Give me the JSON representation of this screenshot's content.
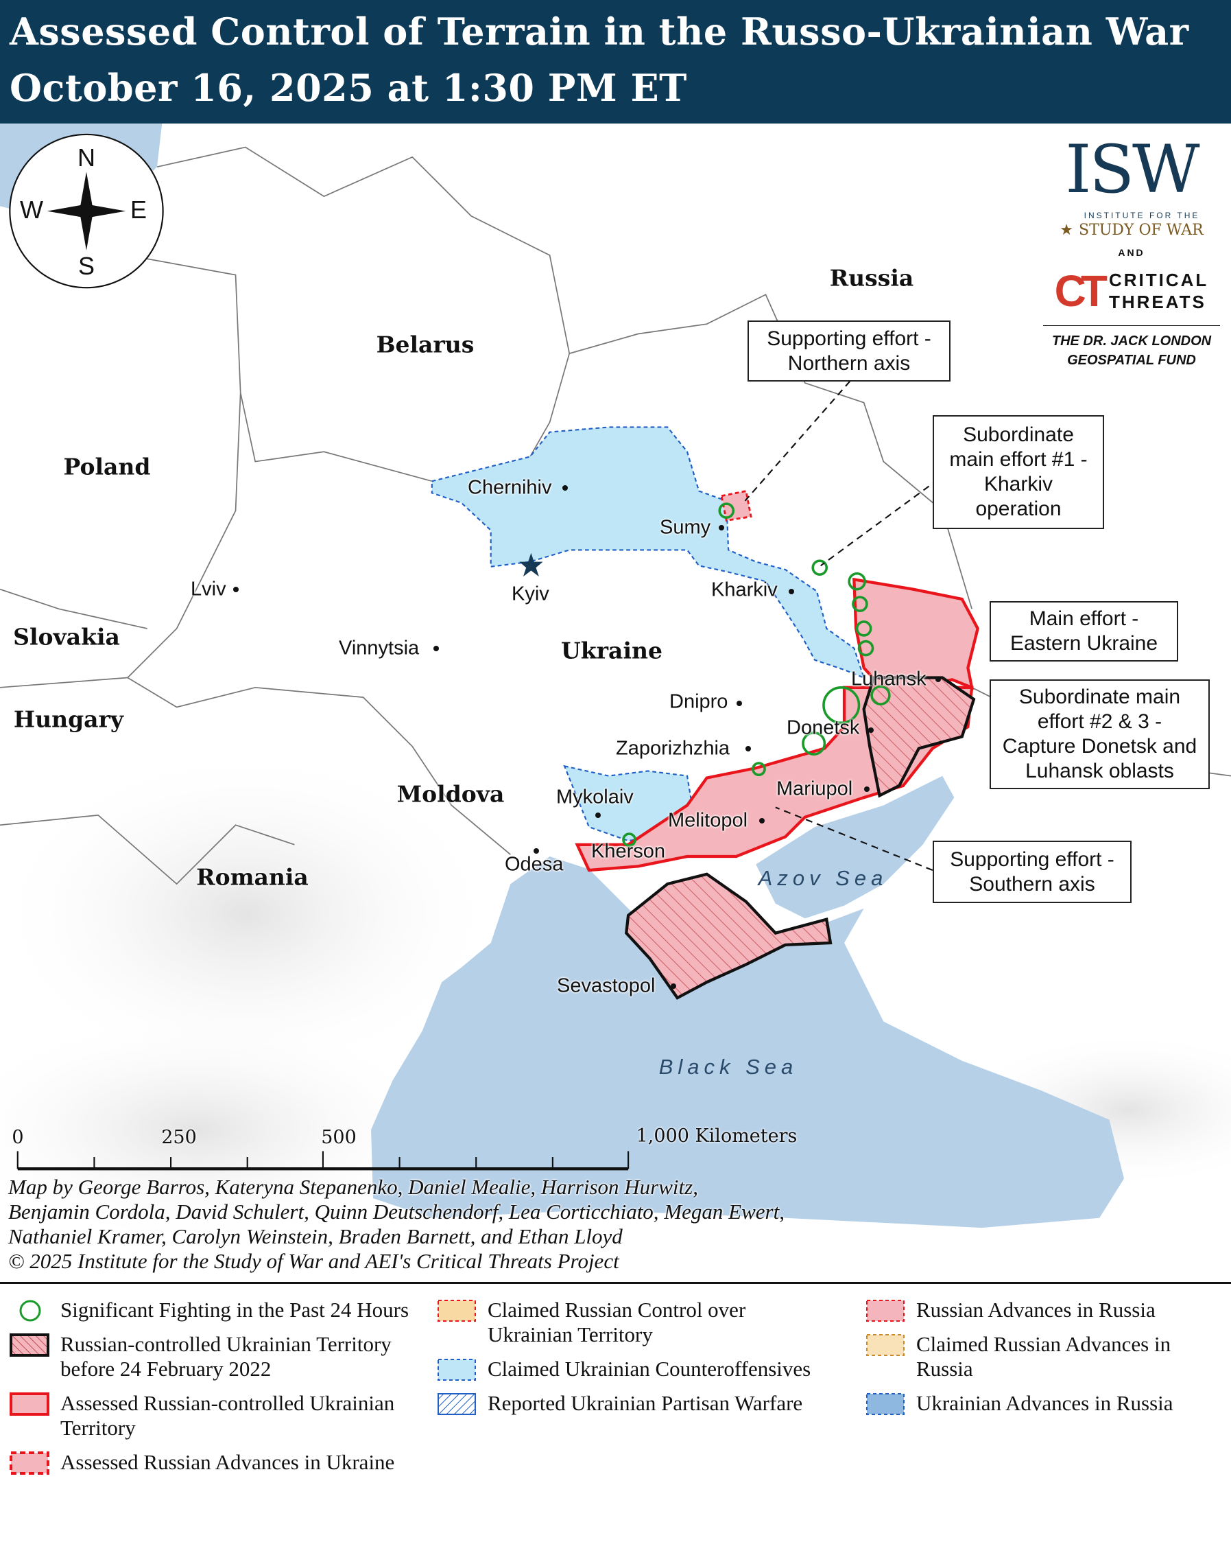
{
  "header": {
    "title_line1": "Assessed Control of Terrain in the Russo-Ukrainian War",
    "title_line2": "October 16, 2025 at 1:30 PM ET"
  },
  "compass": {
    "n": "N",
    "s": "S",
    "e": "E",
    "w": "W"
  },
  "logo": {
    "isw": "ISW",
    "isw_sub1": "INSTITUTE FOR THE",
    "isw_sub2": "STUDY OF WAR",
    "and": "AND",
    "ct_mark": "CT",
    "ct_line1": "CRITICAL",
    "ct_line2": "THREATS",
    "fund_line1": "THE DR. JACK LONDON",
    "fund_line2": "GEOSPATIAL FUND"
  },
  "countries": {
    "russia": "Russia",
    "belarus": "Belarus",
    "poland": "Poland",
    "slovakia": "Slovakia",
    "hungary": "Hungary",
    "moldova": "Moldova",
    "romania": "Romania",
    "ukraine": "Ukraine"
  },
  "cities": {
    "chernihiv": "Chernihiv",
    "sumy": "Sumy",
    "kyiv": "Kyiv",
    "kharkiv": "Kharkiv",
    "lviv": "Lviv",
    "vinnytsia": "Vinnytsia",
    "dnipro": "Dnipro",
    "zaporizhzhia": "Zaporizhzhia",
    "luhansk": "Luhansk",
    "donetsk": "Donetsk",
    "mariupol": "Mariupol",
    "melitopol": "Melitopol",
    "mykolaiv": "Mykolaiv",
    "kherson": "Kherson",
    "odesa": "Odesa",
    "sevastopol": "Sevastopol"
  },
  "seas": {
    "azov": "Azov Sea",
    "black": "Black Sea"
  },
  "callouts": {
    "northern_1": "Supporting effort -",
    "northern_2": "Northern axis",
    "sub1_1": "Subordinate",
    "sub1_2": "main effort #1 -",
    "sub1_3": "Kharkiv",
    "sub1_4": "operation",
    "main_1": "Main effort -",
    "main_2": "Eastern Ukraine",
    "sub23_1": "Subordinate main",
    "sub23_2": "effort #2 & 3 -",
    "sub23_3": "Capture Donetsk and",
    "sub23_4": "Luhansk oblasts",
    "southern_1": "Supporting effort -",
    "southern_2": "Southern axis"
  },
  "scale": {
    "l0": "0",
    "l250": "250",
    "l500": "500",
    "l1000": "1,000 Kilometers"
  },
  "credits": {
    "line1": "Map by George Barros, Kateryna Stepanenko, Daniel Mealie, Harrison Hurwitz,",
    "line2": "Benjamin Cordola, David Schulert, Quinn Deutschendorf, Lea Corticchiato, Megan Ewert,",
    "line3": "Nathaniel Kramer, Carolyn Weinstein, Braden Barnett, and Ethan Lloyd",
    "line4": "© 2025 Institute for the Study of War and AEI's Critical Threats Project"
  },
  "legend": {
    "fighting": "Significant Fighting in the Past 24 Hours",
    "pre2022": "Russian-controlled Ukrainian Territory before 24 February 2022",
    "assessed_russian": "Assessed Russian-controlled Ukrainian Territory",
    "russian_advances": "Assessed Russian Advances in Ukraine",
    "claimed_russian": "Claimed Russian Control over Ukrainian Territory",
    "claimed_ukr": "Claimed Ukrainian Counteroffensives",
    "partisan": "Reported Ukrainian Partisan Warfare",
    "ru_adv_russia": "Russian Advances in Russia",
    "claimed_ru_adv_russia": "Claimed Russian Advances in Russia",
    "ukr_adv_russia": "Ukrainian Advances in Russia"
  },
  "colors": {
    "header": "#0d3a57",
    "water": "#b6d0e8",
    "russian": "#f4b6bc",
    "russian_border": "#e8161c",
    "ukr_counter": "#bfe6f7",
    "ukr_border": "#1f5fc6",
    "fighting": "#1a9a2a",
    "claimed": "#f9d9a3",
    "claimed_border": "#e07a2c"
  }
}
